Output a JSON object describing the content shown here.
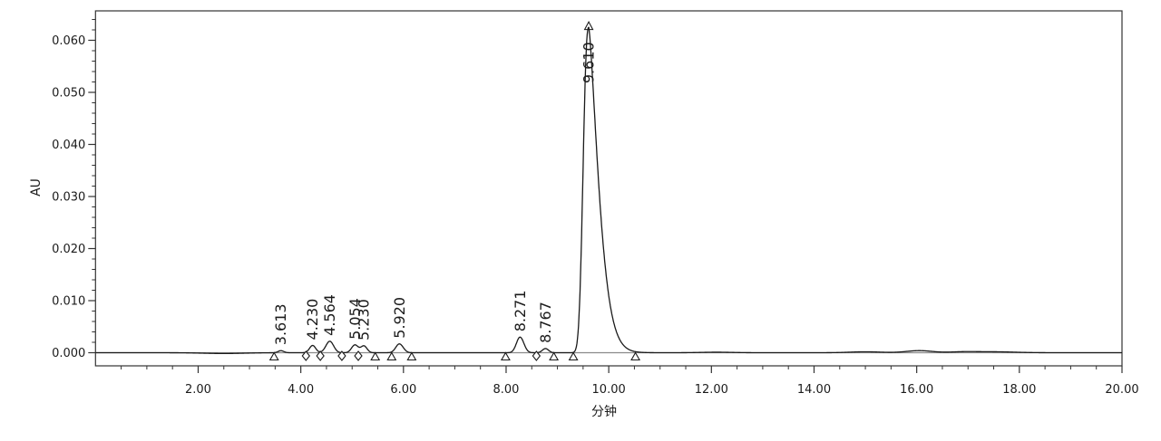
{
  "figure": {
    "background": "#ffffff",
    "trace_color": "#1a1a1a",
    "integration_baseline_color": "#8a8a8a",
    "border_color": "#333333",
    "text_color": "#1b1b1b",
    "marker_fill": "#ffffff"
  },
  "chart_data": {
    "type": "line",
    "title": "",
    "xlabel": "分钟",
    "ylabel": "AU",
    "xlim": [
      0,
      20
    ],
    "ylim": [
      -0.00252,
      0.06565
    ],
    "grid": false,
    "legend": null,
    "x_ticks": {
      "values": [
        2,
        4,
        6,
        8,
        10,
        12,
        14,
        16,
        18,
        20
      ],
      "labels": [
        "2.00",
        "4.00",
        "6.00",
        "8.00",
        "10.00",
        "12.00",
        "14.00",
        "16.00",
        "18.00",
        "20.00"
      ],
      "minor_step": 0.5
    },
    "y_ticks": {
      "values": [
        0,
        0.01,
        0.02,
        0.03,
        0.04,
        0.05,
        0.06
      ],
      "labels": [
        "0.000",
        "0.010",
        "0.020",
        "0.030",
        "0.040",
        "0.050",
        "0.060"
      ],
      "minor_step": 0.002,
      "minor_min": 0.0,
      "minor_max": 0.064
    },
    "peaks": [
      {
        "label": "3.613",
        "rt": 3.613,
        "height": 0.0004,
        "sigma_l": 0.055,
        "sigma_r": 0.055
      },
      {
        "label": "4.230",
        "rt": 4.23,
        "height": 0.0014,
        "sigma_l": 0.06,
        "sigma_r": 0.06
      },
      {
        "label": "4.564",
        "rt": 4.564,
        "height": 0.0022,
        "sigma_l": 0.075,
        "sigma_r": 0.075
      },
      {
        "label": "5.054",
        "rt": 5.054,
        "height": 0.0015,
        "sigma_l": 0.065,
        "sigma_r": 0.065
      },
      {
        "label": "5.230",
        "rt": 5.23,
        "height": 0.0013,
        "sigma_l": 0.06,
        "sigma_r": 0.06
      },
      {
        "label": "5.920",
        "rt": 5.92,
        "height": 0.0017,
        "sigma_l": 0.07,
        "sigma_r": 0.075
      },
      {
        "label": "8.271",
        "rt": 8.271,
        "height": 0.003,
        "sigma_l": 0.07,
        "sigma_r": 0.075
      },
      {
        "label": "8.767",
        "rt": 8.767,
        "height": 0.0008,
        "sigma_l": 0.06,
        "sigma_r": 0.06
      },
      {
        "label": "9.610",
        "rt": 9.61,
        "height": 0.0625,
        "sigma_l": 0.105,
        "sigma_r": 0.16,
        "pow_l": 2.5,
        "pow_r": 1.4,
        "apex_marker": true,
        "label_inside": true
      }
    ],
    "baseline_bumps": [
      {
        "rt": 2.5,
        "height": -0.00015,
        "sigma": 0.4
      },
      {
        "rt": 12.1,
        "height": 0.0001,
        "sigma": 0.3
      },
      {
        "rt": 15.0,
        "height": 0.00018,
        "sigma": 0.3
      },
      {
        "rt": 16.05,
        "height": 0.0004,
        "sigma": 0.25
      },
      {
        "rt": 16.9,
        "height": 0.00015,
        "sigma": 0.25
      },
      {
        "rt": 17.5,
        "height": 0.00018,
        "sigma": 0.4
      }
    ],
    "integration_markers": {
      "baseline_triangles": [
        3.48,
        5.45,
        5.77,
        6.16,
        7.99,
        8.93,
        9.31,
        10.52
      ],
      "valley_diamonds": [
        4.1,
        4.38,
        4.8,
        5.12,
        8.59
      ]
    }
  }
}
